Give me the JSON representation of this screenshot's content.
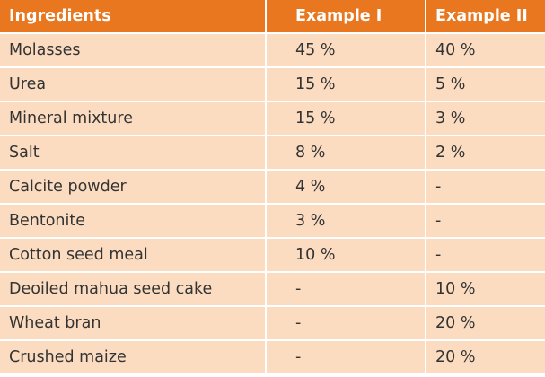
{
  "table": {
    "header_color": "#e8771f",
    "row_color": "#fbdcc0",
    "headers": [
      "Ingredients",
      "Example I",
      "Example II"
    ],
    "rows": [
      [
        "Molasses",
        "45 %",
        "40 %"
      ],
      [
        "Urea",
        "15 %",
        "5 %"
      ],
      [
        "Mineral mixture",
        "15 %",
        "3 %"
      ],
      [
        "Salt",
        "8 %",
        "2 %"
      ],
      [
        "Calcite powder",
        "4 %",
        "-"
      ],
      [
        "Bentonite",
        "3 %",
        "-"
      ],
      [
        "Cotton seed meal",
        "10 %",
        "-"
      ],
      [
        "Deoiled mahua seed cake",
        "-",
        "10 %"
      ],
      [
        "Wheat bran",
        "-",
        "20 %"
      ],
      [
        "Crushed maize",
        "-",
        "20 %"
      ]
    ]
  }
}
